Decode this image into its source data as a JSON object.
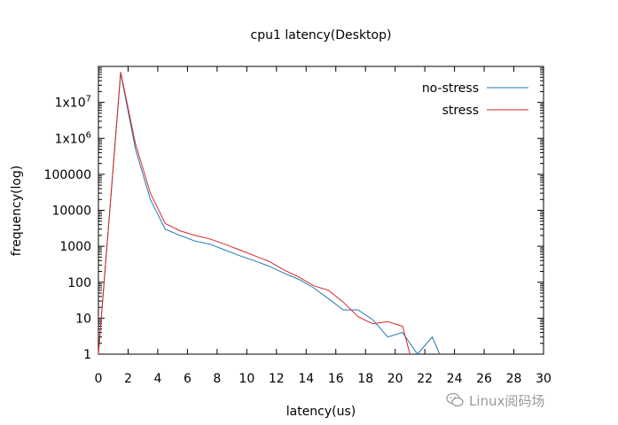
{
  "chart_data": {
    "type": "line",
    "title": "cpu1 latency(Desktop)",
    "xlabel": "latency(us)",
    "ylabel": "frequency(log)",
    "xlim": [
      0,
      30
    ],
    "ylim": [
      1,
      100000000
    ],
    "yscale": "log",
    "grid": false,
    "legend_position": "top-right",
    "x_ticks": [
      "0",
      "2",
      "4",
      "6",
      "8",
      "10",
      "12",
      "14",
      "16",
      "18",
      "20",
      "22",
      "24",
      "26",
      "28",
      "30"
    ],
    "y_tick_values": [
      1,
      10,
      100,
      1000,
      10000,
      100000,
      1000000,
      10000000
    ],
    "y_tick_labels": [
      "1",
      "10",
      "100",
      "1000",
      "10000",
      "100000",
      "1x10^6",
      "1x10^7"
    ],
    "series": [
      {
        "name": "no-stress",
        "color": "#1f77b4",
        "x": [
          0,
          1.5,
          2.5,
          3.5,
          4.5,
          5.5,
          6.5,
          7.5,
          8.5,
          9.5,
          10.5,
          11.5,
          12.5,
          13.5,
          14.5,
          15.5,
          16.5,
          17.5,
          18.5,
          19.5,
          20.5,
          21.5,
          22.5,
          23.0
        ],
        "values": [
          1,
          65000000,
          500000,
          20000,
          3000,
          2000,
          1400,
          1150,
          800,
          550,
          400,
          280,
          180,
          120,
          70,
          35,
          17,
          17,
          9,
          3,
          4,
          1,
          3,
          1
        ]
      },
      {
        "name": "stress",
        "color": "#d62728",
        "x": [
          0,
          1.5,
          2.5,
          3.5,
          4.5,
          5.5,
          6.5,
          7.5,
          8.5,
          9.5,
          10.5,
          11.5,
          12.5,
          13.5,
          14.5,
          15.5,
          16.5,
          17.5,
          18.5,
          19.5,
          20.5,
          21.0
        ],
        "values": [
          1,
          70000000,
          700000,
          30000,
          4300,
          2700,
          2000,
          1600,
          1150,
          800,
          550,
          380,
          220,
          140,
          80,
          60,
          28,
          11,
          7,
          8,
          6,
          1
        ]
      }
    ]
  },
  "watermark": {
    "icon": "wechat-icon",
    "text": "Linux阅码场"
  }
}
